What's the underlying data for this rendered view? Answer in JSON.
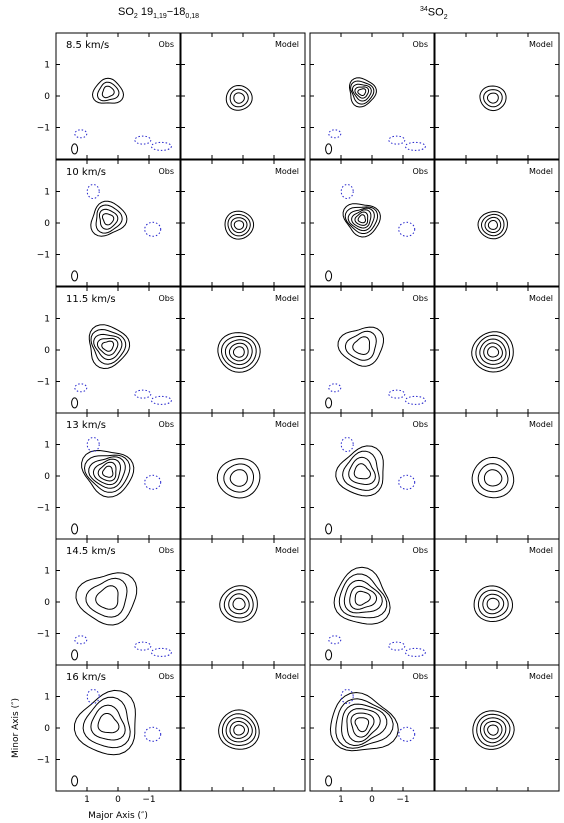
{
  "titles": {
    "so2_prefix": "SO",
    "so2_sub": "2",
    "so2_transition": "19",
    "so2_t1": "1,19",
    "so2_mid": "−18",
    "so2_t2": "0,18",
    "iso_sup": "34",
    "iso_main": "SO",
    "iso_sub": "2"
  },
  "panel_labels": {
    "obs": "Obs",
    "model": "Model"
  },
  "velocities": [
    "8.5 km/s",
    "10 km/s",
    "11.5 km/s",
    "13 km/s",
    "14.5 km/s",
    "16 km/s"
  ],
  "axes": {
    "xlabel": "Major Axis (″)",
    "ylabel": "Minor Axis (″)",
    "y_ticks": [
      "1",
      "0",
      "−1"
    ],
    "x_ticks": [
      "1",
      "0",
      "−1"
    ]
  },
  "colors": {
    "positive_contour": "#000000",
    "negative_contour": "#2222cc"
  }
}
